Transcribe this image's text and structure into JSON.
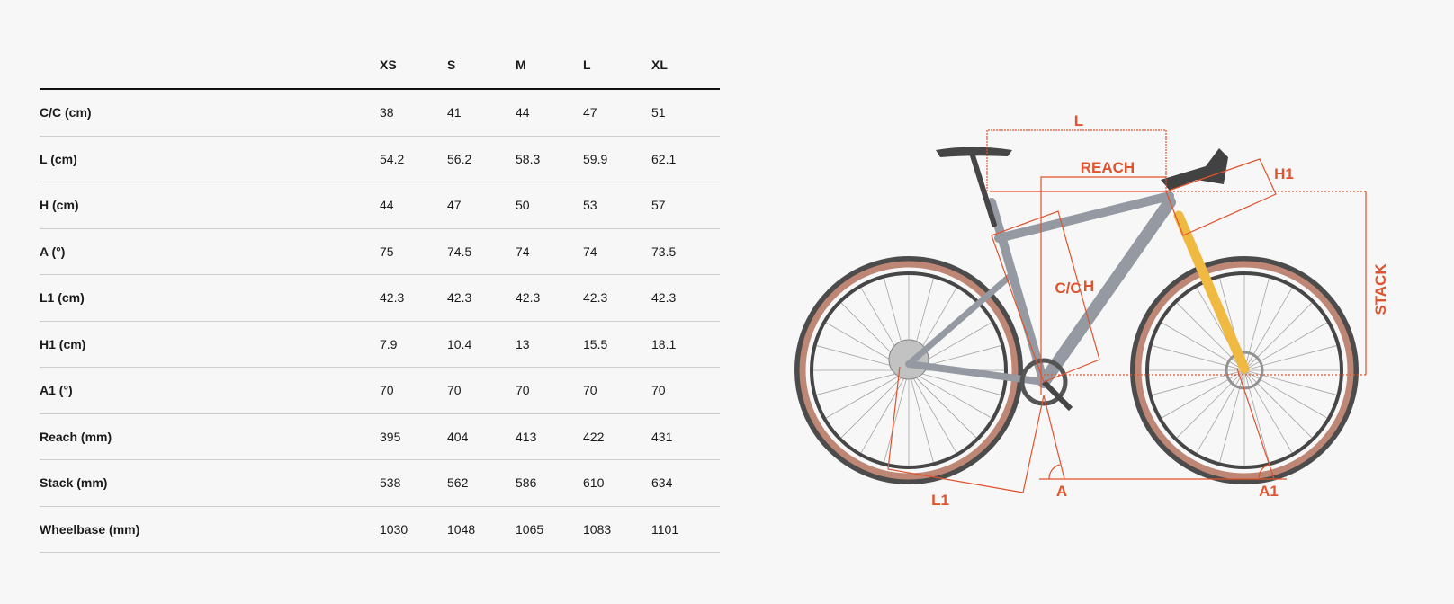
{
  "table": {
    "headers": [
      "",
      "XS",
      "S",
      "M",
      "L",
      "XL"
    ],
    "rows": [
      {
        "label": "C/C (cm)",
        "values": [
          "38",
          "41",
          "44",
          "47",
          "51"
        ]
      },
      {
        "label": "L (cm)",
        "values": [
          "54.2",
          "56.2",
          "58.3",
          "59.9",
          "62.1"
        ]
      },
      {
        "label": "H (cm)",
        "values": [
          "44",
          "47",
          "50",
          "53",
          "57"
        ]
      },
      {
        "label": "A (°)",
        "values": [
          "75",
          "74.5",
          "74",
          "74",
          "73.5"
        ]
      },
      {
        "label": "L1 (cm)",
        "values": [
          "42.3",
          "42.3",
          "42.3",
          "42.3",
          "42.3"
        ]
      },
      {
        "label": "H1 (cm)",
        "values": [
          "7.9",
          "10.4",
          "13",
          "15.5",
          "18.1"
        ]
      },
      {
        "label": "A1 (°)",
        "values": [
          "70",
          "70",
          "70",
          "70",
          "70"
        ]
      },
      {
        "label": "Reach (mm)",
        "values": [
          "395",
          "404",
          "413",
          "422",
          "431"
        ]
      },
      {
        "label": "Stack (mm)",
        "values": [
          "538",
          "562",
          "586",
          "610",
          "634"
        ]
      },
      {
        "label": "Wheelbase (mm)",
        "values": [
          "1030",
          "1048",
          "1065",
          "1083",
          "1101"
        ]
      }
    ]
  },
  "diagram": {
    "labels": {
      "l": "L",
      "reach": "REACH",
      "h1": "H1",
      "cc": "C/C",
      "h": "H",
      "stack": "STACK",
      "l1": "L1",
      "a": "A",
      "a1": "A1"
    },
    "colors": {
      "dimension": "#e0532d",
      "frame": "#8a8f99",
      "fork": "#f0b32e",
      "tire": "#b87a66",
      "background": "#f7f7f7"
    }
  }
}
